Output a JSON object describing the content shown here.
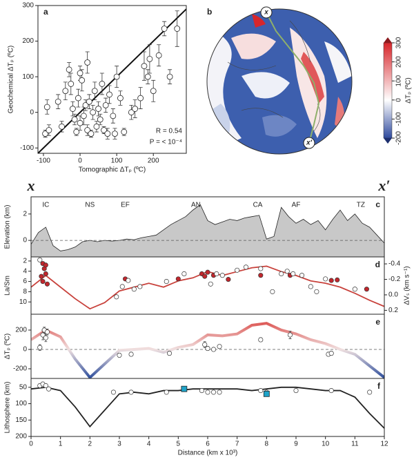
{
  "chart_data": [
    {
      "type": "scatter",
      "label": "a",
      "xlabel": "Tomographic ΔTₚ (ºC)",
      "ylabel": "Geochemical ΔTₚ (ºC)",
      "xlim": [
        -115,
        290
      ],
      "ylim": [
        -115,
        300
      ],
      "xticks": [
        -100,
        0,
        100,
        200
      ],
      "yticks": [
        -100,
        0,
        100,
        200,
        300
      ],
      "identity_line": true,
      "color": "#ffffff",
      "x": [
        -95,
        -90,
        -85,
        -40,
        -30,
        -25,
        -20,
        -15,
        -10,
        -5,
        0,
        5,
        10,
        15,
        20,
        25,
        30,
        35,
        40,
        45,
        50,
        55,
        60,
        65,
        70,
        75,
        80,
        90,
        95,
        100,
        110,
        120,
        140,
        150,
        165,
        175,
        185,
        190,
        200,
        215,
        230,
        245,
        265,
        -50,
        -60,
        0,
        20
      ],
      "values": [
        -60,
        15,
        -50,
        60,
        120,
        80,
        10,
        -20,
        -55,
        40,
        -30,
        90,
        -10,
        20,
        -50,
        30,
        -60,
        0,
        60,
        -40,
        10,
        -20,
        80,
        -50,
        20,
        -60,
        50,
        -10,
        -60,
        100,
        40,
        -55,
        0,
        10,
        40,
        130,
        100,
        150,
        60,
        160,
        235,
        100,
        235,
        -40,
        30,
        110,
        140
      ],
      "errors": [
        10,
        20,
        15,
        25,
        20,
        30,
        20,
        15,
        10,
        25,
        20,
        30,
        25,
        15,
        15,
        20,
        10,
        20,
        25,
        15,
        20,
        15,
        30,
        10,
        20,
        15,
        25,
        20,
        15,
        30,
        20,
        10,
        20,
        25,
        30,
        40,
        20,
        40,
        30,
        30,
        20,
        20,
        50,
        15,
        20,
        20,
        30
      ],
      "annotations": [
        "R = 0.54",
        "P = < 10⁻⁴"
      ]
    },
    {
      "type": "map",
      "label": "b",
      "markers": [
        "x",
        "x′"
      ],
      "colorbar": {
        "clim": [
          -200,
          300
        ],
        "ticks": [
          -200,
          -100,
          0,
          100,
          200,
          300
        ],
        "label": "ΔTₚ (ºC)",
        "colors": [
          "#2f4a9e",
          "#ffffff",
          "#d7262b"
        ]
      }
    },
    {
      "type": "area",
      "label": "c",
      "ylabel": "Elevation (km)",
      "xlim": [
        0,
        12
      ],
      "ylim": [
        -1.25,
        3.3
      ],
      "yticks": [
        0,
        2
      ],
      "color": "#c8c8c8",
      "end_labels": [
        "x",
        "x′"
      ],
      "x": [
        0,
        0.25,
        0.5,
        0.75,
        1,
        1.25,
        1.5,
        1.75,
        2,
        2.25,
        2.5,
        2.75,
        3,
        3.25,
        3.5,
        3.75,
        4,
        4.25,
        4.5,
        4.75,
        5,
        5.25,
        5.5,
        5.75,
        6,
        6.25,
        6.5,
        6.75,
        7,
        7.25,
        7.5,
        7.75,
        8,
        8.25,
        8.5,
        8.75,
        9,
        9.25,
        9.5,
        9.75,
        10,
        10.25,
        10.5,
        10.75,
        11,
        11.25,
        11.5,
        11.75,
        12
      ],
      "values": [
        -0.3,
        0.6,
        1.0,
        -0.4,
        -0.8,
        -0.7,
        -0.5,
        -0.1,
        0,
        -0.1,
        0,
        -0.05,
        0,
        0.1,
        0.05,
        0.2,
        0.3,
        0.4,
        0.8,
        1.2,
        1.5,
        1.8,
        2.3,
        2.7,
        1.5,
        1.2,
        1.4,
        1.6,
        1.5,
        1.7,
        1.8,
        1.9,
        0.1,
        0.3,
        2.5,
        1.8,
        1.3,
        1.6,
        1.2,
        1.5,
        0.8,
        1.6,
        2.3,
        1.5,
        2.0,
        1.3,
        1.0,
        0.4,
        -0.2
      ],
      "regions": [
        {
          "text": "IC",
          "x": 0.5
        },
        {
          "text": "NS",
          "x": 2.0
        },
        {
          "text": "EF",
          "x": 3.2
        },
        {
          "text": "AN",
          "x": 5.6
        },
        {
          "text": "CA",
          "x": 7.7
        },
        {
          "text": "AF",
          "x": 9.0
        },
        {
          "text": "TZ",
          "x": 11.2
        }
      ]
    },
    {
      "type": "line",
      "label": "d",
      "ylabel": "La/Sm",
      "y2label": "ΔVₛ (km s⁻¹)",
      "xlim": [
        0,
        12
      ],
      "ylim": [
        1.2,
        12.4
      ],
      "y_inverted": true,
      "yticks": [
        2,
        4,
        6,
        8,
        10
      ],
      "y2lim": [
        -0.49,
        0.25
      ],
      "y2_inverted": true,
      "y2ticks": [
        -0.4,
        -0.2,
        {
          "value": 0,
          "label": "0.0"
        },
        0.2
      ],
      "series": [
        {
          "style": "line",
          "axis": "y2",
          "color": "#c8413b",
          "x": [
            0,
            0.5,
            1,
            1.5,
            2,
            2.5,
            3,
            3.5,
            4,
            4.5,
            5,
            5.5,
            6,
            6.5,
            7,
            7.5,
            8,
            8.5,
            9,
            9.5,
            10,
            10.5,
            11,
            11.5,
            12
          ],
          "values": [
            -0.1,
            -0.25,
            -0.1,
            0.05,
            0.18,
            0.1,
            -0.05,
            -0.1,
            -0.15,
            -0.1,
            -0.18,
            -0.22,
            -0.3,
            -0.25,
            -0.3,
            -0.35,
            -0.37,
            -0.3,
            -0.25,
            -0.18,
            -0.15,
            -0.1,
            -0.02,
            0.07,
            0.15
          ]
        },
        {
          "style": "points",
          "color": "#c1272d",
          "x": [
            0.4,
            0.45,
            0.5,
            0.35,
            0.4,
            0.55,
            0.5,
            3.2,
            5.0,
            5.8,
            5.9,
            6.0,
            6.2,
            6.7,
            7.8,
            8.8,
            10.2,
            10.4,
            11.4
          ],
          "values": [
            2.5,
            3.5,
            4.5,
            5,
            6,
            6.5,
            2.8,
            5.5,
            5.5,
            4.5,
            5,
            4.2,
            4.8,
            5.6,
            4.8,
            4.8,
            5.8,
            5.7,
            7.5
          ]
        },
        {
          "style": "points",
          "color": "#ffffff",
          "x": [
            0.3,
            2.9,
            3.1,
            3.3,
            3.5,
            3.7,
            4.6,
            5.2,
            6.1,
            6.3,
            6.5,
            7.0,
            7.3,
            7.8,
            8.5,
            8.7,
            8.9,
            9.2,
            9.5,
            9.7,
            10.0,
            11.0,
            8.2
          ],
          "values": [
            1.8,
            9,
            7,
            5.8,
            7.5,
            7,
            6,
            4.5,
            6.5,
            4.5,
            4.8,
            3.8,
            3.2,
            3.5,
            4.5,
            4,
            4.5,
            4.8,
            7,
            8,
            5.5,
            7.5,
            8.0
          ]
        }
      ]
    },
    {
      "type": "line",
      "label": "e",
      "ylabel": "ΔTₚ (ºC)",
      "xlim": [
        0,
        12
      ],
      "ylim": [
        -300,
        364
      ],
      "yticks": [
        200,
        0,
        -200
      ],
      "series": [
        {
          "style": "line",
          "colormap": [
            "#d7302c",
            "#f0e0e0",
            "#2b4c9b"
          ],
          "x": [
            0,
            0.5,
            1,
            1.5,
            2,
            2.5,
            3,
            3.5,
            4,
            4.5,
            5,
            5.5,
            6,
            6.5,
            7,
            7.5,
            8,
            8.5,
            9,
            9.5,
            10,
            10.5,
            11,
            11.5,
            12
          ],
          "values": [
            100,
            200,
            130,
            -100,
            -290,
            -150,
            -10,
            0,
            10,
            -30,
            20,
            50,
            150,
            140,
            160,
            250,
            270,
            200,
            160,
            100,
            60,
            0,
            -50,
            -170,
            -290
          ]
        },
        {
          "style": "points",
          "color": "#ffffff",
          "x": [
            0.3,
            0.4,
            0.45,
            0.5,
            0.55,
            3.0,
            3.4,
            4.7,
            5.9,
            6.0,
            6.2,
            6.4,
            7.8,
            8.8,
            10.1,
            10.2
          ],
          "values": [
            20,
            150,
            200,
            120,
            180,
            -60,
            -50,
            -40,
            50,
            10,
            0,
            30,
            100,
            150,
            -50,
            -40
          ],
          "errors": [
            30,
            50,
            30,
            40,
            30,
            20,
            20,
            20,
            30,
            20,
            15,
            20,
            20,
            40,
            20,
            20
          ]
        }
      ]
    },
    {
      "type": "line",
      "label": "f",
      "ylabel": "Lithosphere (km)",
      "xlabel": "Distance (km x 10³)",
      "xlim": [
        0,
        12
      ],
      "xticks": [
        0,
        1,
        2,
        3,
        4,
        5,
        6,
        7,
        8,
        9,
        10,
        11,
        12
      ],
      "ylim": [
        23,
        200
      ],
      "y_inverted": true,
      "yticks": [
        50,
        100,
        150,
        200
      ],
      "series": [
        {
          "style": "line",
          "color": "#222222",
          "x": [
            0,
            0.5,
            1,
            1.5,
            2,
            2.5,
            3,
            3.5,
            4,
            4.5,
            5,
            5.5,
            6,
            6.5,
            7,
            7.5,
            8,
            8.5,
            9,
            9.5,
            10,
            10.5,
            11,
            11.5,
            12
          ],
          "values": [
            55,
            50,
            60,
            110,
            170,
            120,
            70,
            65,
            70,
            60,
            60,
            55,
            55,
            55,
            55,
            60,
            55,
            50,
            50,
            55,
            60,
            60,
            80,
            130,
            175
          ]
        },
        {
          "style": "points",
          "color": "#ffffff",
          "x": [
            0.3,
            0.4,
            0.5,
            0.6,
            2.8,
            3.4,
            4.6,
            5.2,
            5.8,
            6.0,
            6.2,
            6.4,
            7.8,
            8.0,
            9.0,
            10.2,
            11.5
          ],
          "values": [
            45,
            40,
            45,
            55,
            65,
            65,
            65,
            55,
            60,
            65,
            65,
            65,
            60,
            65,
            60,
            60,
            65
          ]
        },
        {
          "style": "squares",
          "color": "#1fa3c8",
          "x": [
            5.2,
            8.0
          ],
          "values": [
            55,
            70
          ]
        }
      ]
    }
  ]
}
